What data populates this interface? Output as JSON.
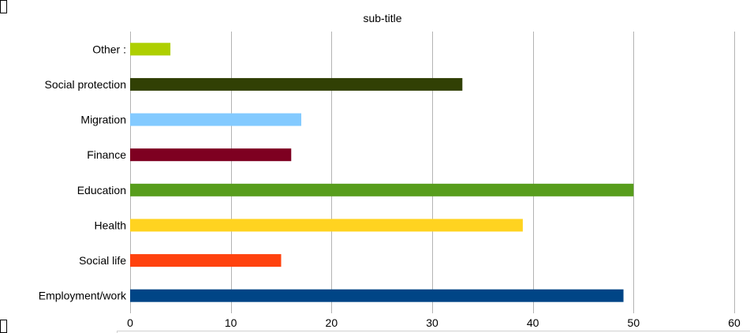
{
  "chart_data": {
    "type": "bar",
    "orientation": "horizontal",
    "title": "",
    "subtitle": "sub-title",
    "xlabel": "",
    "ylabel": "",
    "categories": [
      "Employment/work",
      "Social life",
      "Health",
      "Education",
      "Finance",
      "Migration",
      "Social protection",
      "Other :"
    ],
    "values": [
      49,
      15,
      39,
      50,
      16,
      17,
      33,
      4
    ],
    "colors": [
      "#004586",
      "#ff420e",
      "#ffd320",
      "#579d1c",
      "#7e0021",
      "#83caff",
      "#314004",
      "#aecf00"
    ],
    "xlim": [
      0,
      60
    ],
    "xticks": [
      0,
      10,
      20,
      30,
      40,
      50,
      60
    ],
    "grid": "vertical",
    "gridColor": "#b3b3b3",
    "legend": "none"
  }
}
